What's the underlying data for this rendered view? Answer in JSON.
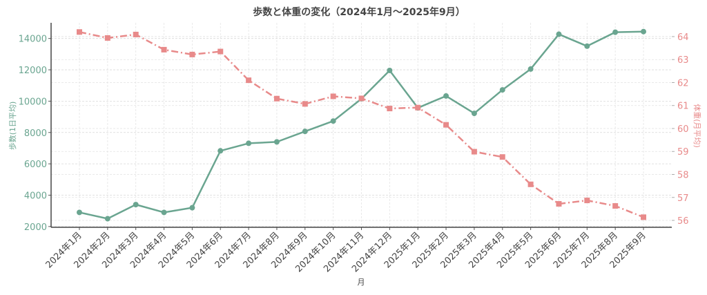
{
  "chart_data": {
    "type": "line",
    "title": "歩数と体重の変化（2024年1月〜2025年9月）",
    "xlabel": "月",
    "ylabel": "歩数(1日平均)",
    "y2label": "体重(月平均)",
    "categories": [
      "2024年1月",
      "2024年2月",
      "2024年3月",
      "2024年4月",
      "2024年5月",
      "2024年6月",
      "2024年7月",
      "2024年8月",
      "2024年9月",
      "2024年10月",
      "2024年11月",
      "2024年12月",
      "2025年1月",
      "2025年2月",
      "2025年3月",
      "2025年4月",
      "2025年5月",
      "2025年6月",
      "2025年7月",
      "2025年8月",
      "2025年9月"
    ],
    "series": [
      {
        "name": "歩数(1日平均)",
        "axis": "left",
        "color": "#6aa590",
        "style": "solid",
        "marker": "circle",
        "values": [
          2900,
          2500,
          3400,
          2900,
          3200,
          6830,
          7310,
          7400,
          8070,
          8730,
          10150,
          11960,
          9570,
          10330,
          9220,
          10720,
          12050,
          14270,
          13510,
          14400,
          14440
        ]
      },
      {
        "name": "体重(月平均)",
        "axis": "right",
        "color": "#e88a8a",
        "style": "dashdot",
        "marker": "square",
        "values": [
          64.2,
          63.94,
          64.09,
          63.43,
          63.22,
          63.35,
          62.1,
          61.3,
          61.07,
          61.4,
          61.31,
          60.87,
          60.91,
          60.16,
          58.99,
          58.76,
          57.57,
          56.72,
          56.87,
          56.63,
          56.14
        ]
      }
    ],
    "ylim": [
      1950,
      15000
    ],
    "y2lim": [
      55.7,
      64.6
    ],
    "yticks": [
      2000,
      4000,
      6000,
      8000,
      10000,
      12000,
      14000
    ],
    "y2ticks": [
      56,
      57,
      58,
      59,
      60,
      61,
      62,
      63,
      64
    ],
    "grid": true
  }
}
